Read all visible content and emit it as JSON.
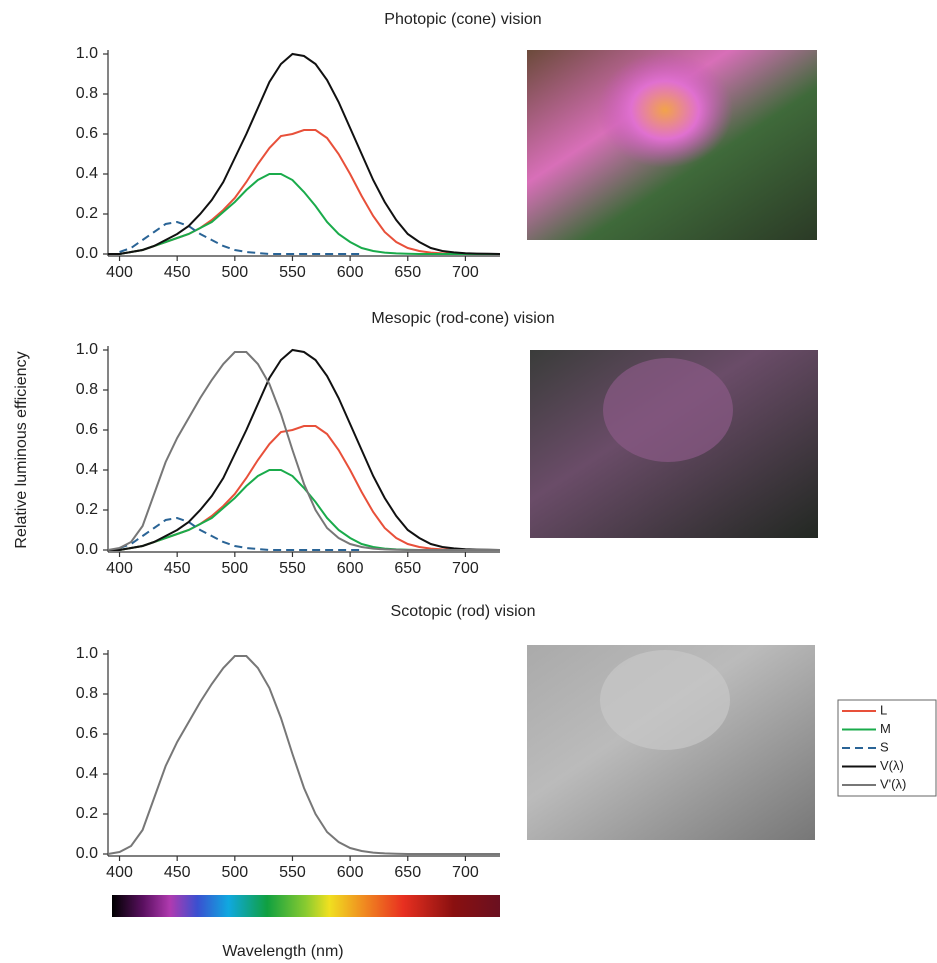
{
  "chart_data": [
    {
      "type": "line",
      "title": "Photopic (cone) vision",
      "x": [
        390,
        400,
        410,
        420,
        430,
        440,
        450,
        460,
        470,
        480,
        490,
        500,
        510,
        520,
        530,
        540,
        550,
        560,
        570,
        580,
        590,
        600,
        610,
        620,
        630,
        640,
        650,
        660,
        670,
        680,
        690,
        700,
        710,
        720,
        730
      ],
      "xlim": [
        390,
        730
      ],
      "xticks": [
        400,
        450,
        500,
        550,
        600,
        650,
        700
      ],
      "ylim": [
        -0.01,
        1.02
      ],
      "yticks": [
        {
          "value": 0,
          "label": "0.0"
        },
        0.2,
        0.4,
        0.6,
        0.8,
        {
          "value": 1,
          "label": "1.0"
        }
      ],
      "series": [
        {
          "name": "L",
          "color": "#e8503a",
          "values": [
            0,
            0,
            0.01,
            0.02,
            0.04,
            0.06,
            0.08,
            0.1,
            0.13,
            0.17,
            0.22,
            0.28,
            0.36,
            0.45,
            0.53,
            0.59,
            0.6,
            0.62,
            0.62,
            0.58,
            0.5,
            0.4,
            0.29,
            0.19,
            0.11,
            0.06,
            0.03,
            0.015,
            0.007,
            0.003,
            0.001,
            0,
            0,
            0,
            0
          ]
        },
        {
          "name": "M",
          "color": "#1aab4b",
          "values": [
            0,
            0,
            0.01,
            0.02,
            0.04,
            0.06,
            0.08,
            0.1,
            0.13,
            0.16,
            0.21,
            0.26,
            0.32,
            0.37,
            0.4,
            0.4,
            0.37,
            0.31,
            0.24,
            0.16,
            0.1,
            0.06,
            0.03,
            0.015,
            0.007,
            0.003,
            0.001,
            0,
            0,
            0,
            0,
            0,
            0,
            0,
            0
          ]
        },
        {
          "name": "S",
          "color": "#2a6496",
          "dashed": true,
          "values": [
            null,
            0.01,
            0.03,
            0.07,
            0.11,
            0.15,
            0.16,
            0.14,
            0.1,
            0.07,
            0.04,
            0.02,
            0.01,
            0.005,
            0,
            0,
            0,
            0,
            0,
            0,
            0,
            0,
            0,
            null,
            null,
            null,
            null,
            null,
            null,
            null,
            null,
            null,
            null,
            null,
            null
          ]
        },
        {
          "name": "V(λ)",
          "color": "#111111",
          "values": [
            0,
            0,
            0.01,
            0.02,
            0.04,
            0.07,
            0.1,
            0.14,
            0.2,
            0.27,
            0.36,
            0.48,
            0.6,
            0.73,
            0.86,
            0.95,
            1,
            0.99,
            0.95,
            0.87,
            0.76,
            0.63,
            0.5,
            0.37,
            0.26,
            0.17,
            0.1,
            0.06,
            0.03,
            0.015,
            0.008,
            0.004,
            0.002,
            0.001,
            0
          ]
        }
      ]
    },
    {
      "type": "line",
      "title": "Mesopic (rod-cone) vision",
      "ylabel": "Relative luminous efficiency",
      "x": [
        390,
        400,
        410,
        420,
        430,
        440,
        450,
        460,
        470,
        480,
        490,
        500,
        510,
        520,
        530,
        540,
        550,
        560,
        570,
        580,
        590,
        600,
        610,
        620,
        630,
        640,
        650,
        660,
        670,
        680,
        690,
        700,
        710,
        720,
        730
      ],
      "xlim": [
        390,
        730
      ],
      "xticks": [
        400,
        450,
        500,
        550,
        600,
        650,
        700
      ],
      "ylim": [
        -0.01,
        1.02
      ],
      "yticks": [
        {
          "value": 0,
          "label": "0.0"
        },
        0.2,
        0.4,
        0.6,
        0.8,
        {
          "value": 1,
          "label": "1.0"
        }
      ],
      "series": [
        {
          "name": "L",
          "color": "#e8503a",
          "values": [
            0,
            0,
            0.01,
            0.02,
            0.04,
            0.06,
            0.08,
            0.1,
            0.13,
            0.17,
            0.22,
            0.28,
            0.36,
            0.45,
            0.53,
            0.59,
            0.6,
            0.62,
            0.62,
            0.58,
            0.5,
            0.4,
            0.29,
            0.19,
            0.11,
            0.06,
            0.03,
            0.015,
            0.007,
            0.003,
            0.001,
            0,
            0,
            0,
            0
          ]
        },
        {
          "name": "M",
          "color": "#1aab4b",
          "values": [
            0,
            0,
            0.01,
            0.02,
            0.04,
            0.06,
            0.08,
            0.1,
            0.13,
            0.16,
            0.21,
            0.26,
            0.32,
            0.37,
            0.4,
            0.4,
            0.37,
            0.31,
            0.24,
            0.16,
            0.1,
            0.06,
            0.03,
            0.015,
            0.007,
            0.003,
            0.001,
            0,
            0,
            0,
            0,
            0,
            0,
            0,
            0
          ]
        },
        {
          "name": "S",
          "color": "#2a6496",
          "dashed": true,
          "values": [
            null,
            0.01,
            0.03,
            0.07,
            0.11,
            0.15,
            0.16,
            0.14,
            0.1,
            0.07,
            0.04,
            0.02,
            0.01,
            0.005,
            0,
            0,
            0,
            0,
            0,
            0,
            0,
            0,
            0,
            null,
            null,
            null,
            null,
            null,
            null,
            null,
            null,
            null,
            null,
            null,
            null
          ]
        },
        {
          "name": "V(λ)",
          "color": "#111111",
          "values": [
            0,
            0,
            0.01,
            0.02,
            0.04,
            0.07,
            0.1,
            0.14,
            0.2,
            0.27,
            0.36,
            0.48,
            0.6,
            0.73,
            0.86,
            0.95,
            1,
            0.99,
            0.95,
            0.87,
            0.76,
            0.63,
            0.5,
            0.37,
            0.26,
            0.17,
            0.1,
            0.06,
            0.03,
            0.015,
            0.008,
            0.004,
            0.002,
            0.001,
            0
          ]
        },
        {
          "name": "V'(λ)",
          "color": "#777777",
          "values": [
            0,
            0.01,
            0.04,
            0.12,
            0.28,
            0.44,
            0.56,
            0.66,
            0.76,
            0.85,
            0.93,
            0.99,
            0.99,
            0.93,
            0.83,
            0.68,
            0.5,
            0.33,
            0.2,
            0.11,
            0.06,
            0.03,
            0.015,
            0.007,
            0.003,
            0.001,
            0,
            0,
            0,
            0,
            0,
            0,
            0,
            0,
            0
          ]
        }
      ]
    },
    {
      "type": "line",
      "title": "Scotopic (rod) vision",
      "xlabel": "Wavelength (nm)",
      "x": [
        390,
        400,
        410,
        420,
        430,
        440,
        450,
        460,
        470,
        480,
        490,
        500,
        510,
        520,
        530,
        540,
        550,
        560,
        570,
        580,
        590,
        600,
        610,
        620,
        630,
        640,
        650,
        660,
        670,
        680,
        690,
        700,
        710,
        720,
        730
      ],
      "xlim": [
        390,
        730
      ],
      "xticks": [
        400,
        450,
        500,
        550,
        600,
        650,
        700
      ],
      "ylim": [
        -0.01,
        1.02
      ],
      "yticks": [
        {
          "value": 0,
          "label": "0.0"
        },
        0.2,
        0.4,
        0.6,
        0.8,
        {
          "value": 1,
          "label": "1.0"
        }
      ],
      "series": [
        {
          "name": "V'(λ)",
          "color": "#777777",
          "values": [
            0,
            0.01,
            0.04,
            0.12,
            0.28,
            0.44,
            0.56,
            0.66,
            0.76,
            0.85,
            0.93,
            0.99,
            0.99,
            0.93,
            0.83,
            0.68,
            0.5,
            0.33,
            0.2,
            0.11,
            0.06,
            0.03,
            0.015,
            0.007,
            0.003,
            0.001,
            0,
            0,
            0,
            0,
            0,
            0,
            0,
            0,
            0
          ]
        }
      ]
    }
  ]
}
